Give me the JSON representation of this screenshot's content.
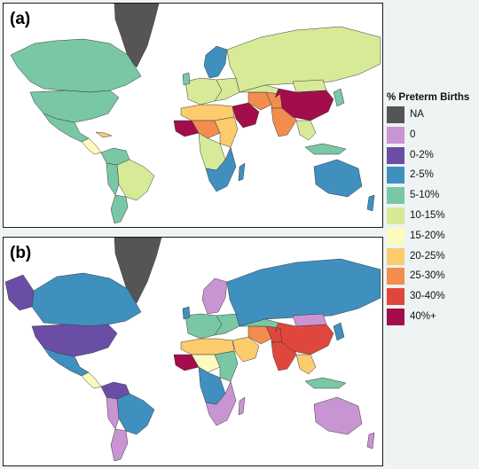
{
  "panels": [
    {
      "label": "(a)"
    },
    {
      "label": "(b)"
    }
  ],
  "legend": {
    "title": "% Preterm Births",
    "items": [
      {
        "label": "NA",
        "color": "#555555"
      },
      {
        "label": "0",
        "color": "#c994d2"
      },
      {
        "label": "0-2%",
        "color": "#6a4ea6"
      },
      {
        "label": "2-5%",
        "color": "#3f8fbf"
      },
      {
        "label": "5-10%",
        "color": "#79c7a5"
      },
      {
        "label": "10-15%",
        "color": "#d6ea98"
      },
      {
        "label": "15-20%",
        "color": "#fdfabd"
      },
      {
        "label": "20-25%",
        "color": "#fbcb6e"
      },
      {
        "label": "25-30%",
        "color": "#f28d4e"
      },
      {
        "label": "30-40%",
        "color": "#e0473c"
      },
      {
        "label": "40%+",
        "color": "#a30d4c"
      }
    ]
  }
}
